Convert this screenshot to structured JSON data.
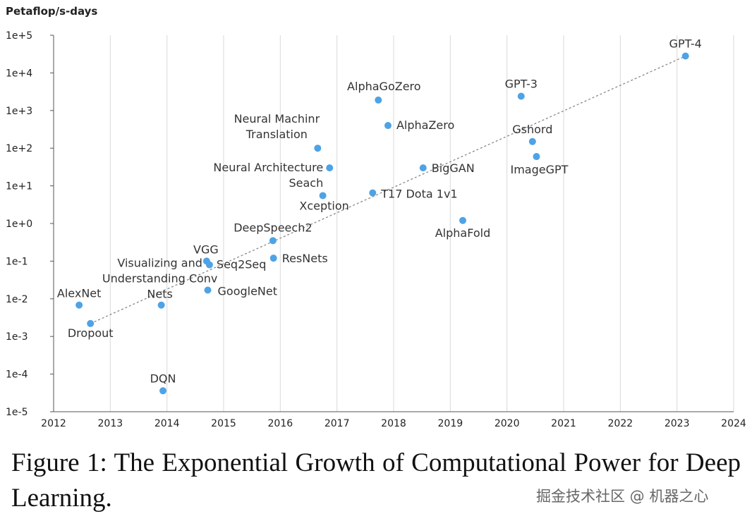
{
  "chart_data": {
    "type": "scatter",
    "ylabel": "Petaflop/s-days",
    "y_scale": "log",
    "ylim": [
      1e-05,
      100000.0
    ],
    "xlim": [
      2012,
      2024
    ],
    "x_ticks": [
      "2012",
      "2013",
      "2014",
      "2015",
      "2016",
      "2017",
      "2018",
      "2019",
      "2020",
      "2021",
      "2022",
      "2023",
      "2024"
    ],
    "y_ticks": [
      "1e-5",
      "1e-4",
      "1e-3",
      "1e-2",
      "1e-1",
      "1e+0",
      "1e+1",
      "1e+2",
      "1e+3",
      "1e+4",
      "1e+5"
    ],
    "grid": "vertical",
    "trendline": {
      "style": "dashed",
      "from": [
        2012.65,
        0.0022
      ],
      "to": [
        2023.15,
        28000
      ]
    },
    "points": [
      {
        "name": "AlexNet",
        "x": 2012.45,
        "y": 0.0068
      },
      {
        "name": "Dropout",
        "x": 2012.65,
        "y": 0.0022
      },
      {
        "name": "DQN",
        "x": 2013.93,
        "y": 3.6e-05
      },
      {
        "name": "Visualizing and Understanding Conv Nets",
        "x": 2013.9,
        "y": 0.0068
      },
      {
        "name": "VGG",
        "x": 2014.7,
        "y": 0.1
      },
      {
        "name": "Seq2Seq",
        "x": 2014.75,
        "y": 0.08
      },
      {
        "name": "GoogleNet",
        "x": 2014.72,
        "y": 0.017
      },
      {
        "name": "DeepSpeech2",
        "x": 2015.87,
        "y": 0.35
      },
      {
        "name": "ResNets",
        "x": 2015.88,
        "y": 0.12
      },
      {
        "name": "Xception",
        "x": 2016.75,
        "y": 5.5
      },
      {
        "name": "Neural Architecture Seach",
        "x": 2016.87,
        "y": 30
      },
      {
        "name": "Neural Machinr Translation",
        "x": 2016.66,
        "y": 100
      },
      {
        "name": "T17 Dota 1v1",
        "x": 2017.63,
        "y": 6.5
      },
      {
        "name": "AlphaGoZero",
        "x": 2017.73,
        "y": 1900
      },
      {
        "name": "AlphaZero",
        "x": 2017.9,
        "y": 400
      },
      {
        "name": "BigGAN",
        "x": 2018.52,
        "y": 30
      },
      {
        "name": "AlphaFold",
        "x": 2019.22,
        "y": 1.2
      },
      {
        "name": "GPT-3",
        "x": 2020.25,
        "y": 2400
      },
      {
        "name": "Gshord",
        "x": 2020.45,
        "y": 150
      },
      {
        "name": "ImageGPT",
        "x": 2020.52,
        "y": 60
      },
      {
        "name": "GPT-4",
        "x": 2023.15,
        "y": 28000
      }
    ],
    "colors": {
      "point": "#4ea3e6",
      "trendline": "#888888",
      "grid": "#d9d9d9",
      "axis": "#555555"
    }
  },
  "caption": "Figure 1: The Exponential Growth of Computational Power for Deep Learning.",
  "watermark": "掘金技术社区 @ 机器之心"
}
